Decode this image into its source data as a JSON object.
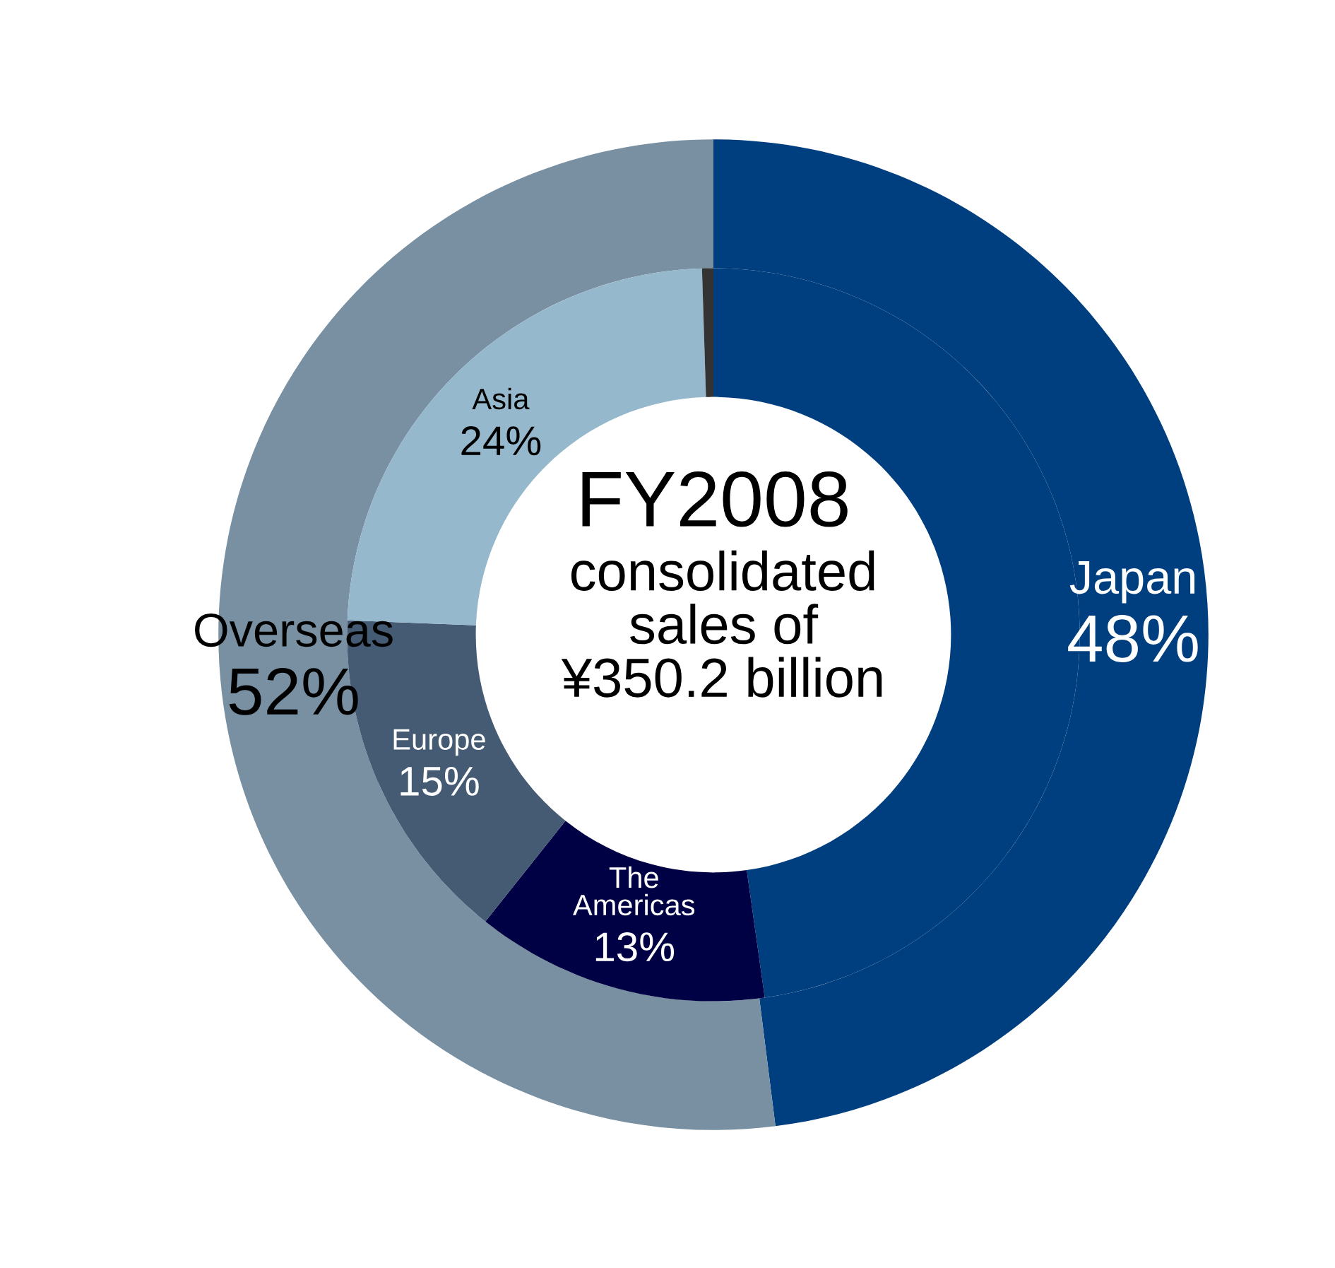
{
  "chart_data": {
    "type": "donut",
    "title": "FY2008",
    "subtitle": "consolidated\nsales of\n¥350.2 billion",
    "series": [
      {
        "values": [
          48,
          52
        ],
        "colors": [
          "#003f7f",
          "#7890a2"
        ],
        "value_labels": [
          "Japan\n48%",
          "Overseas\n52%"
        ]
      },
      {
        "values": [
          48,
          13,
          15,
          24,
          0.5
        ],
        "colors": [
          "#003f7f",
          "#000045",
          "#455a73",
          "#95b8cc",
          "#333333"
        ],
        "value_labels": [
          null,
          "The\nAmericas\n13%",
          "Europe\n15%",
          "Asia\n24%",
          null
        ]
      }
    ]
  }
}
